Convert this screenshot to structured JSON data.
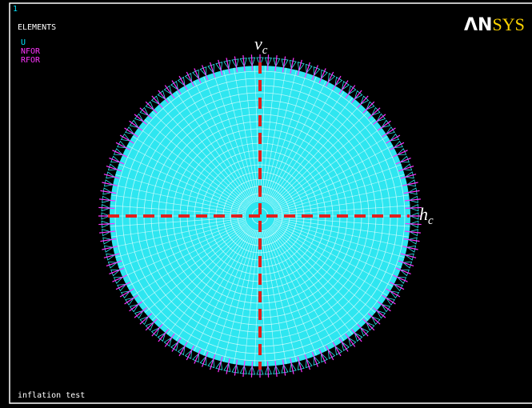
{
  "window": {
    "number": "1",
    "legend_title": "ELEMENTS",
    "legend_items": [
      "U",
      "NFOR",
      "RFOR"
    ],
    "logo": {
      "left": "ΛN",
      "right": "SYS"
    },
    "caption": "inflation test"
  },
  "annotations": {
    "vertical": {
      "main": "v",
      "sub": "c"
    },
    "horizontal": {
      "main": "h",
      "sub": "c"
    }
  }
}
